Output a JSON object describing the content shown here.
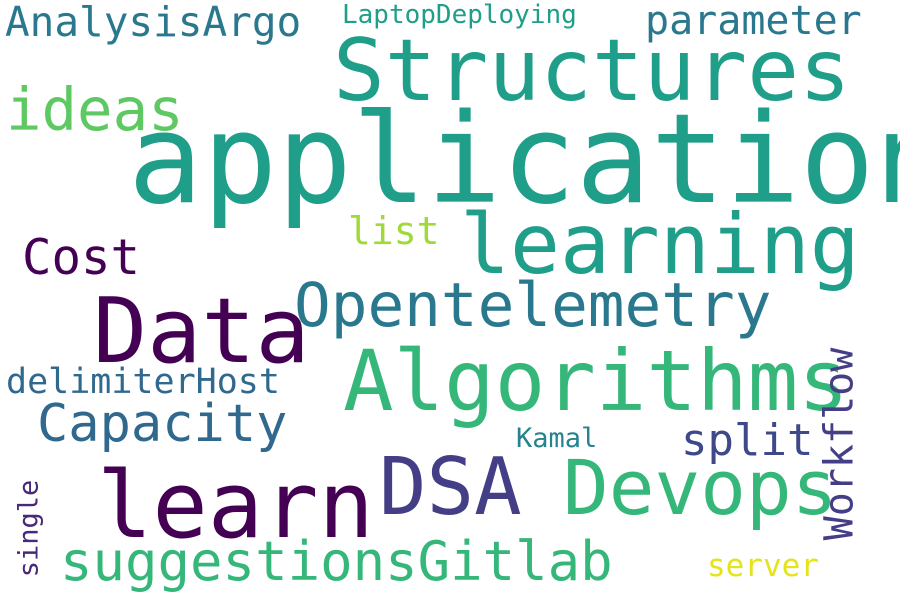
{
  "words": [
    {
      "id": "application",
      "text": "application",
      "color": "#1f9e89"
    },
    {
      "id": "structures",
      "text": "Structures",
      "color": "#1f9e89"
    },
    {
      "id": "learning",
      "text": "learning",
      "color": "#1f9e89"
    },
    {
      "id": "algorithms",
      "text": "Algorithms",
      "color": "#35b779"
    },
    {
      "id": "data",
      "text": "Data",
      "color": "#440154"
    },
    {
      "id": "opentelemetry",
      "text": "Opentelemetry",
      "color": "#2a788e"
    },
    {
      "id": "learn",
      "text": "learn",
      "color": "#440154"
    },
    {
      "id": "dsa",
      "text": "DSA",
      "color": "#433e85"
    },
    {
      "id": "devops",
      "text": "Devops",
      "color": "#35b779"
    },
    {
      "id": "suggestionsgitlab",
      "text": "suggestionsGitlab",
      "color": "#35b779"
    },
    {
      "id": "ideas",
      "text": "ideas",
      "color": "#5ec962"
    },
    {
      "id": "analysisargo",
      "text": "AnalysisArgo",
      "color": "#2a788e"
    },
    {
      "id": "parameter",
      "text": "parameter",
      "color": "#2a788e"
    },
    {
      "id": "laptopdeploying",
      "text": "LaptopDeploying",
      "color": "#1f9e89"
    },
    {
      "id": "cost",
      "text": "Cost",
      "color": "#440154"
    },
    {
      "id": "list",
      "text": "list",
      "color": "#a0da39"
    },
    {
      "id": "delimiterhost",
      "text": "delimiterHost",
      "color": "#31688e"
    },
    {
      "id": "capacity",
      "text": "Capacity",
      "color": "#31688e"
    },
    {
      "id": "workflow",
      "text": "Workflow",
      "color": "#433e85"
    },
    {
      "id": "split",
      "text": "split",
      "color": "#3e4989"
    },
    {
      "id": "kamal",
      "text": "Kamal",
      "color": "#26828e"
    },
    {
      "id": "single",
      "text": "single",
      "color": "#482878"
    },
    {
      "id": "server",
      "text": "server",
      "color": "#e5e419"
    }
  ]
}
